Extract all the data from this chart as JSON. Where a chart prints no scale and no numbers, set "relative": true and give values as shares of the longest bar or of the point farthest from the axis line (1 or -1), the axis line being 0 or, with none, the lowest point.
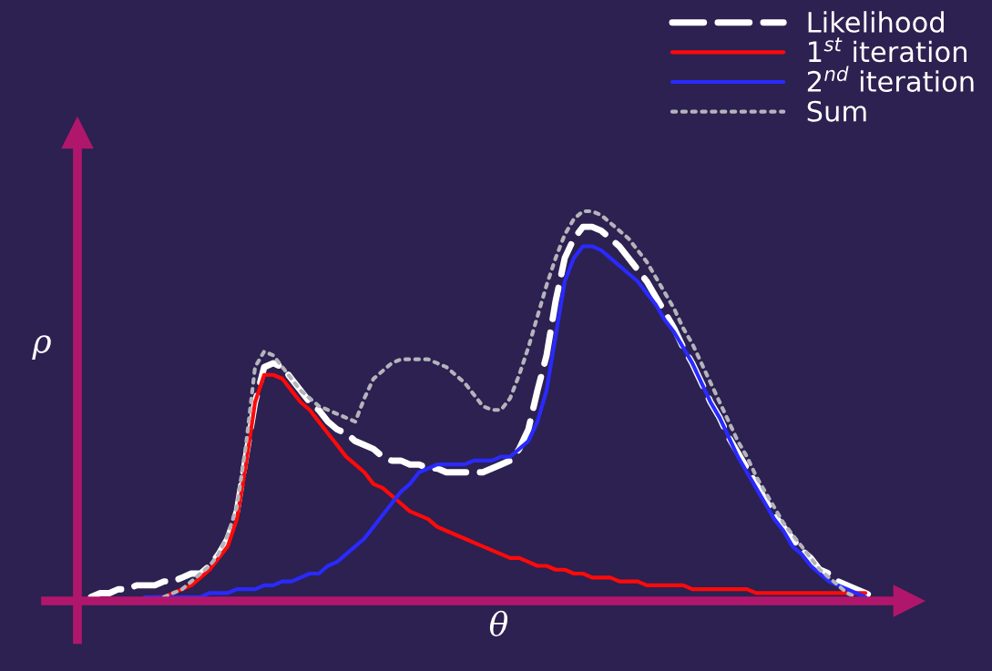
{
  "chart_data": {
    "type": "line",
    "relative": true,
    "xlabel": "θ",
    "ylabel": "ρ",
    "legend": "top right",
    "marker": "none",
    "categories": [
      null,
      null,
      null,
      null,
      null,
      null,
      null,
      null,
      null,
      null,
      null,
      null,
      null,
      null,
      null,
      null,
      null,
      null,
      null,
      null,
      null,
      null,
      null,
      null,
      null,
      null,
      null,
      null,
      null,
      null,
      null,
      null,
      null,
      null,
      null,
      null,
      null,
      null,
      null,
      null,
      null,
      null,
      null,
      null,
      null,
      null,
      null,
      null,
      null,
      null,
      null,
      null,
      null,
      null,
      null,
      null,
      null,
      null,
      null,
      null,
      null,
      null,
      null,
      null,
      null,
      null,
      null,
      null,
      null,
      null,
      null,
      null,
      null,
      null,
      null,
      null,
      null,
      null,
      null,
      null,
      null,
      null,
      null,
      null,
      null,
      null,
      null
    ],
    "series": [
      {
        "name": "Likelihood",
        "color": "#ffffff",
        "line_style": "dashed",
        "values": [
          0.01,
          0.02,
          0.02,
          0.03,
          0.03,
          0.04,
          0.04,
          0.04,
          0.05,
          0.05,
          0.06,
          0.07,
          0.07,
          0.09,
          0.12,
          0.16,
          0.23,
          0.37,
          0.51,
          0.6,
          0.61,
          0.6,
          0.57,
          0.54,
          0.51,
          0.49,
          0.46,
          0.44,
          0.43,
          0.41,
          0.4,
          0.39,
          0.37,
          0.36,
          0.36,
          0.35,
          0.35,
          0.34,
          0.34,
          0.33,
          0.33,
          0.33,
          0.33,
          0.33,
          0.34,
          0.35,
          0.36,
          0.39,
          0.44,
          0.54,
          0.63,
          0.77,
          0.88,
          0.93,
          0.96,
          0.96,
          0.95,
          0.93,
          0.91,
          0.88,
          0.85,
          0.82,
          0.78,
          0.74,
          0.7,
          0.65,
          0.61,
          0.56,
          0.51,
          0.47,
          0.42,
          0.38,
          0.34,
          0.3,
          0.26,
          0.22,
          0.19,
          0.16,
          0.13,
          0.11,
          0.08,
          0.07,
          0.05,
          0.04,
          0.03,
          0.02,
          0.01
        ]
      },
      {
        "name": "1$^{st}$ iteration",
        "color": "#ff0a0a",
        "line_style": "solid",
        "values": [
          null,
          null,
          null,
          null,
          null,
          null,
          null,
          0.01,
          0.01,
          0.02,
          0.03,
          0.04,
          0.06,
          0.08,
          0.11,
          0.14,
          0.21,
          0.35,
          0.51,
          0.58,
          0.58,
          0.57,
          0.54,
          0.51,
          0.49,
          0.46,
          0.43,
          0.4,
          0.37,
          0.35,
          0.33,
          0.3,
          0.29,
          0.27,
          0.25,
          0.23,
          0.22,
          0.21,
          0.19,
          0.18,
          0.17,
          0.16,
          0.15,
          0.14,
          0.13,
          0.12,
          0.11,
          0.11,
          0.1,
          0.09,
          0.09,
          0.08,
          0.08,
          0.07,
          0.07,
          0.06,
          0.06,
          0.06,
          0.05,
          0.05,
          0.05,
          0.04,
          0.04,
          0.04,
          0.04,
          0.04,
          0.03,
          0.03,
          0.03,
          0.03,
          0.03,
          0.03,
          0.03,
          0.02,
          0.02,
          0.02,
          0.02,
          0.02,
          0.02,
          0.02,
          0.02,
          0.02,
          0.02,
          0.02,
          0.02,
          0.02,
          null
        ]
      },
      {
        "name": "2$^{nd}$ iteration",
        "color": "#2a2aff",
        "line_style": "solid",
        "values": [
          null,
          null,
          null,
          null,
          null,
          0,
          0.01,
          0.01,
          0.01,
          0.01,
          0.01,
          0.01,
          0.01,
          0.02,
          0.02,
          0.02,
          0.03,
          0.03,
          0.03,
          0.04,
          0.04,
          0.05,
          0.05,
          0.06,
          0.07,
          0.07,
          0.09,
          0.1,
          0.12,
          0.14,
          0.16,
          0.19,
          0.22,
          0.25,
          0.28,
          0.3,
          0.33,
          0.34,
          0.35,
          0.35,
          0.35,
          0.35,
          0.36,
          0.36,
          0.36,
          0.37,
          0.37,
          0.39,
          0.41,
          0.46,
          0.54,
          0.68,
          0.82,
          0.88,
          0.91,
          0.91,
          0.9,
          0.88,
          0.86,
          0.84,
          0.82,
          0.79,
          0.76,
          0.72,
          0.69,
          0.65,
          0.61,
          0.56,
          0.51,
          0.47,
          0.42,
          0.37,
          0.33,
          0.29,
          0.25,
          0.21,
          0.18,
          0.14,
          0.12,
          0.09,
          0.07,
          0.05,
          0.04,
          0.03,
          0.02,
          0.01,
          null
        ]
      },
      {
        "name": "Sum",
        "color": "#b4b4bc",
        "line_style": "dotted",
        "values": [
          null,
          null,
          null,
          null,
          null,
          null,
          null,
          null,
          0.01,
          0.02,
          0.03,
          0.05,
          0.07,
          0.09,
          0.12,
          0.17,
          0.24,
          0.4,
          0.6,
          0.64,
          0.63,
          0.6,
          0.57,
          0.54,
          0.52,
          0.5,
          0.49,
          0.48,
          0.47,
          0.46,
          0.52,
          0.57,
          0.59,
          0.61,
          0.62,
          0.62,
          0.62,
          0.62,
          0.61,
          0.6,
          0.58,
          0.56,
          0.53,
          0.5,
          0.49,
          0.49,
          0.52,
          0.58,
          0.65,
          0.73,
          0.81,
          0.88,
          0.94,
          0.98,
          1.0,
          1.0,
          0.99,
          0.97,
          0.95,
          0.93,
          0.9,
          0.87,
          0.83,
          0.79,
          0.75,
          0.7,
          0.66,
          0.61,
          0.56,
          0.51,
          0.46,
          0.41,
          0.37,
          0.32,
          0.28,
          0.24,
          0.2,
          0.17,
          0.14,
          0.11,
          0.08,
          0.06,
          0.04,
          0.02,
          0.01,
          null,
          null
        ]
      }
    ]
  }
}
